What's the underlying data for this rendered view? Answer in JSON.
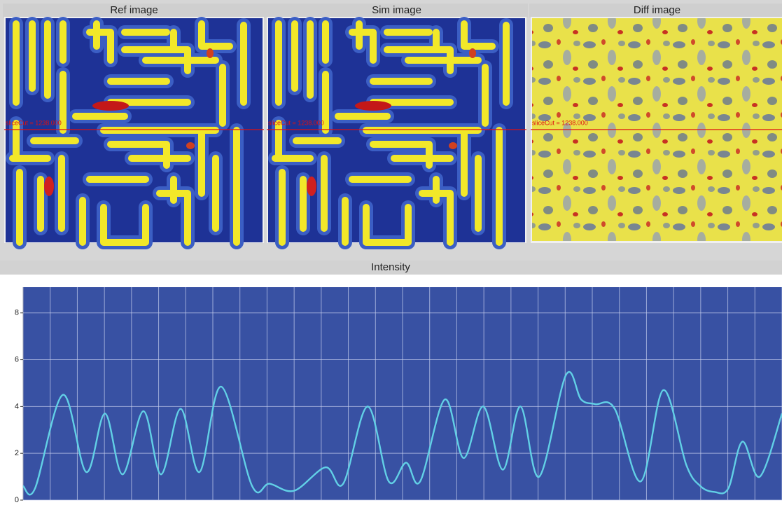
{
  "panels": [
    {
      "title": "Ref image",
      "slice_label": "sliceCut = 1238.000"
    },
    {
      "title": "Sim image",
      "slice_label": "sliceCut = 1238.000"
    },
    {
      "title": "Diff image",
      "slice_label": "sliceCut = 1238.000"
    }
  ],
  "chart_data": {
    "type": "line",
    "title": "Intensity",
    "x": [
      0,
      0.44,
      1.47,
      2.33,
      3.02,
      3.67,
      4.44,
      5.09,
      5.81,
      6.51,
      7.31,
      8.45,
      9.09,
      10.0,
      11.16,
      11.81,
      12.71,
      13.49,
      14.13,
      14.65,
      15.56,
      16.25,
      16.98,
      17.7,
      18.35,
      19.04,
      20.03,
      20.59,
      21.11,
      21.83,
      22.79,
      23.62,
      24.47,
      24.99,
      25.5,
      26.02,
      26.54,
      27.18,
      28
    ],
    "series": [
      {
        "color": "#62d0e6",
        "values": [
          0.6,
          0.5,
          4.5,
          1.2,
          3.7,
          1.1,
          3.8,
          1.1,
          3.9,
          1.2,
          4.85,
          0.6,
          0.7,
          0.4,
          1.4,
          0.7,
          4.0,
          0.8,
          1.6,
          0.8,
          4.3,
          1.8,
          4.0,
          1.3,
          4.0,
          1.0,
          5.35,
          4.3,
          4.1,
          3.9,
          0.8,
          4.7,
          1.5,
          0.6,
          0.35,
          0.5,
          2.5,
          1.0,
          3.7
        ]
      }
    ],
    "xlim": [
      0,
      28
    ],
    "xticks": [
      0,
      1,
      2,
      3,
      4,
      5,
      6,
      7,
      8,
      9,
      10,
      11,
      12,
      13,
      14,
      15,
      16,
      17,
      18,
      19,
      20,
      21,
      22,
      23,
      24,
      25,
      26,
      27,
      28
    ],
    "ylim": [
      0,
      9.1
    ],
    "yticks": [
      0,
      2,
      4,
      6,
      8
    ],
    "grid": true,
    "background": "#3851a3"
  }
}
